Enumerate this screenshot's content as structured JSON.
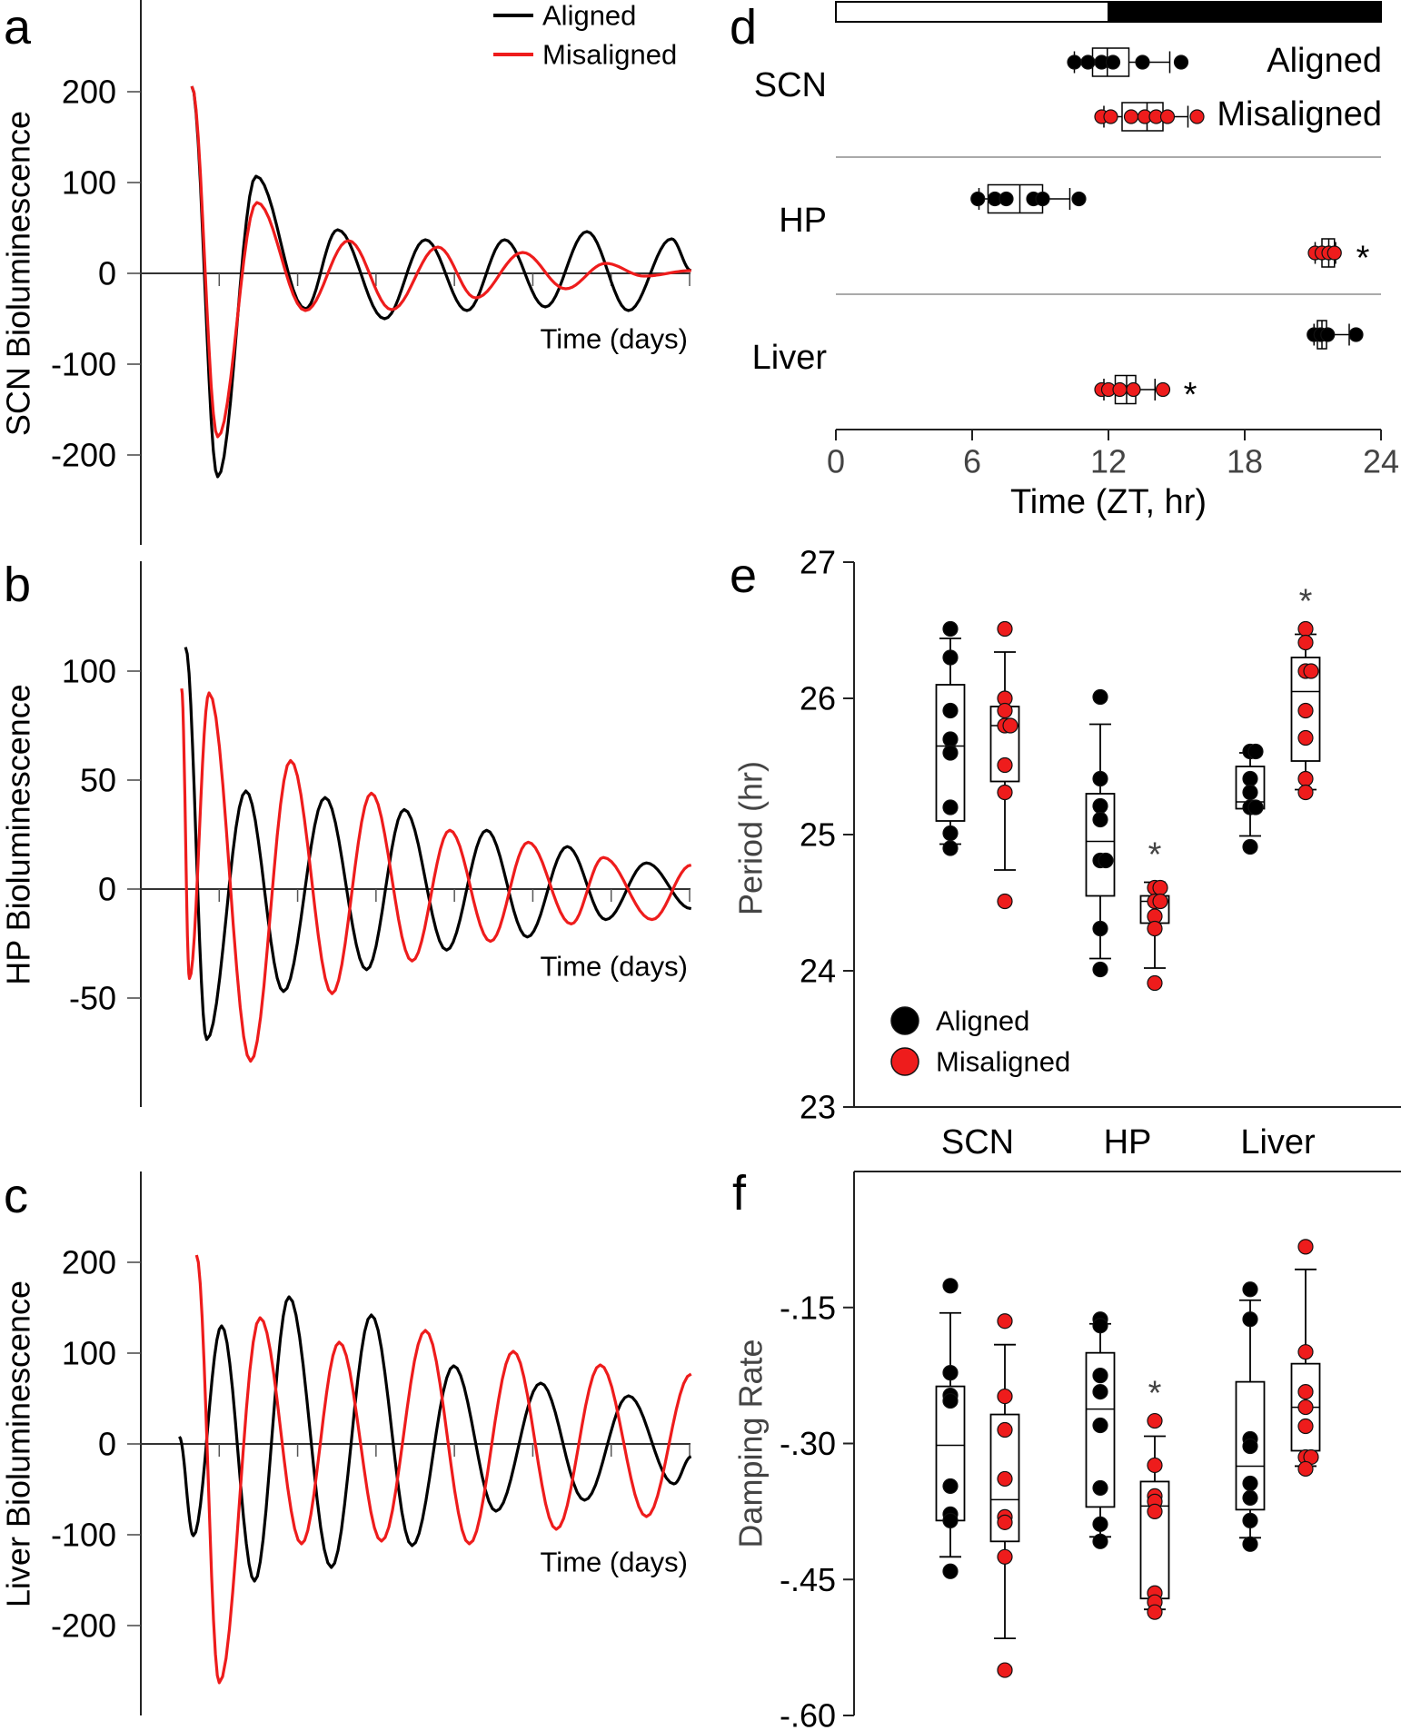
{
  "colors": {
    "aligned": "#000000",
    "misaligned": "#ee1c1c",
    "separator": "#aaaaaa"
  },
  "legend": [
    "Aligned",
    "Misaligned"
  ],
  "chart_data": [
    {
      "panel": "a",
      "type": "line",
      "ylabel": "SCN Bioluminescence",
      "xlabel": "Time (days)",
      "xlim": [
        0,
        7
      ],
      "xticks": [
        1,
        2,
        3,
        4,
        5,
        6,
        7
      ],
      "ylim": [
        -300,
        300
      ],
      "yticks": [
        200,
        100,
        0,
        -100,
        -200
      ],
      "legend_position": "top-right",
      "series": [
        {
          "name": "Aligned",
          "points": [
            [
              0.65,
              206
            ],
            [
              0.98,
              -224
            ],
            [
              1.47,
              107
            ],
            [
              2.1,
              -39
            ],
            [
              2.51,
              48
            ],
            [
              3.11,
              -50
            ],
            [
              3.63,
              37
            ],
            [
              4.16,
              -41
            ],
            [
              4.64,
              37
            ],
            [
              5.16,
              -37
            ],
            [
              5.69,
              46
            ],
            [
              6.22,
              -41
            ],
            [
              6.77,
              38
            ],
            [
              7.02,
              3
            ]
          ]
        },
        {
          "name": "Misaligned",
          "points": [
            [
              0.65,
              206
            ],
            [
              0.98,
              -180
            ],
            [
              1.48,
              78
            ],
            [
              2.1,
              -41
            ],
            [
              2.65,
              36
            ],
            [
              3.2,
              -40
            ],
            [
              3.79,
              29
            ],
            [
              4.27,
              -27
            ],
            [
              4.87,
              23
            ],
            [
              5.42,
              -17
            ],
            [
              5.93,
              11
            ],
            [
              6.42,
              -3
            ],
            [
              7.02,
              3
            ]
          ]
        }
      ]
    },
    {
      "panel": "b",
      "type": "line",
      "ylabel": "HP Bioluminescence",
      "xlabel": "Time (days)",
      "xlim": [
        0,
        7
      ],
      "xticks": [
        1,
        2,
        3,
        4,
        5,
        6,
        7
      ],
      "ylim": [
        -100,
        150
      ],
      "yticks": [
        100,
        50,
        0,
        -50
      ],
      "series": [
        {
          "name": "Aligned",
          "points": [
            [
              0.57,
              111
            ],
            [
              0.84,
              -69
            ],
            [
              1.34,
              45
            ],
            [
              1.82,
              -47
            ],
            [
              2.35,
              42
            ],
            [
              2.88,
              -37
            ],
            [
              3.36,
              36.5
            ],
            [
              3.9,
              -28
            ],
            [
              4.41,
              27
            ],
            [
              4.93,
              -22
            ],
            [
              5.44,
              19.5
            ],
            [
              5.93,
              -14
            ],
            [
              6.45,
              12
            ],
            [
              7.02,
              -9
            ]
          ]
        },
        {
          "name": "Misaligned",
          "points": [
            [
              0.52,
              92
            ],
            [
              0.62,
              -41
            ],
            [
              0.87,
              90
            ],
            [
              1.4,
              -79
            ],
            [
              1.91,
              59
            ],
            [
              2.44,
              -48
            ],
            [
              2.94,
              44
            ],
            [
              3.46,
              -33
            ],
            [
              3.94,
              27
            ],
            [
              4.46,
              -24
            ],
            [
              4.94,
              21.5
            ],
            [
              5.49,
              -16
            ],
            [
              5.9,
              14.5
            ],
            [
              6.52,
              -14
            ],
            [
              7.02,
              11
            ]
          ]
        }
      ]
    },
    {
      "panel": "c",
      "type": "line",
      "ylabel": "Liver Bioluminescence",
      "xlabel": "Time (days)",
      "xlim": [
        0,
        7
      ],
      "xticks": [
        1,
        2,
        3,
        4,
        5,
        6,
        7
      ],
      "ylim": [
        -300,
        300
      ],
      "yticks": [
        200,
        100,
        0,
        -100,
        -200
      ],
      "series": [
        {
          "name": "Aligned",
          "points": [
            [
              0.49,
              8
            ],
            [
              0.67,
              -101
            ],
            [
              1.03,
              130
            ],
            [
              1.45,
              -151
            ],
            [
              1.89,
              162
            ],
            [
              2.43,
              -136
            ],
            [
              2.94,
              142
            ],
            [
              3.46,
              -112
            ],
            [
              3.99,
              86
            ],
            [
              4.53,
              -74
            ],
            [
              5.1,
              67
            ],
            [
              5.66,
              -62
            ],
            [
              6.22,
              53
            ],
            [
              6.8,
              -44
            ],
            [
              7.02,
              -14
            ]
          ]
        },
        {
          "name": "Misaligned",
          "points": [
            [
              0.71,
              208
            ],
            [
              1.0,
              -263
            ],
            [
              1.52,
              139
            ],
            [
              2.05,
              -110
            ],
            [
              2.53,
              112
            ],
            [
              3.07,
              -107
            ],
            [
              3.63,
              125
            ],
            [
              4.19,
              -110
            ],
            [
              4.75,
              102
            ],
            [
              5.3,
              -94
            ],
            [
              5.86,
              87
            ],
            [
              6.45,
              -80
            ],
            [
              7.02,
              77
            ]
          ]
        }
      ]
    },
    {
      "panel": "d",
      "type": "box",
      "orientation": "horizontal",
      "xlabel": "Time (ZT, hr)",
      "xlim": [
        0,
        24
      ],
      "xticks": [
        0,
        6,
        12,
        18,
        24
      ],
      "light_dark_bar": {
        "light": [
          0,
          12
        ],
        "dark": [
          12,
          24
        ]
      },
      "tissues": [
        "SCN",
        "HP",
        "Liver"
      ],
      "row_labels": [
        "Aligned",
        "Misaligned"
      ],
      "groups": [
        {
          "tissue": "SCN",
          "condition": "Aligned",
          "whisker": [
            10.5,
            14.7
          ],
          "box": [
            11.3,
            12.9
          ],
          "median": 11.95,
          "points": [
            10.5,
            11.1,
            11.7,
            12.2,
            13.5,
            15.2
          ],
          "significant": false
        },
        {
          "tissue": "SCN",
          "condition": "Misaligned",
          "whisker": [
            11.8,
            15.5
          ],
          "box": [
            12.6,
            14.4
          ],
          "median": 13.7,
          "points": [
            11.7,
            12.1,
            13.0,
            13.6,
            14.1,
            14.6,
            15.9
          ],
          "significant": false
        },
        {
          "tissue": "HP",
          "condition": "Aligned",
          "whisker": [
            6.3,
            10.3
          ],
          "box": [
            6.7,
            9.1
          ],
          "median": 8.1,
          "points": [
            6.25,
            7.0,
            7.5,
            8.7,
            9.1,
            10.7
          ],
          "significant": false
        },
        {
          "tissue": "HP",
          "condition": "Misaligned",
          "whisker": [
            21.1,
            22.0
          ],
          "box": [
            21.4,
            21.95
          ],
          "median": 21.7,
          "points": [
            21.1,
            21.4,
            21.7,
            21.95
          ],
          "significant": true
        },
        {
          "tissue": "Liver",
          "condition": "Aligned",
          "whisker": [
            21.05,
            22.6
          ],
          "box": [
            21.2,
            21.6
          ],
          "median": 21.4,
          "points": [
            21.05,
            21.35,
            21.65,
            22.9
          ],
          "significant": false
        },
        {
          "tissue": "Liver",
          "condition": "Misaligned",
          "whisker": [
            11.8,
            14.05
          ],
          "box": [
            12.3,
            13.2
          ],
          "median": 12.8,
          "points": [
            11.7,
            12.0,
            12.5,
            13.1,
            14.4
          ],
          "significant": true
        }
      ],
      "asterisk": "*"
    },
    {
      "panel": "e",
      "type": "box",
      "orientation": "vertical",
      "ylabel": "Period (hr)",
      "ylim": [
        23,
        27
      ],
      "yticks": [
        23,
        24,
        25,
        26,
        27
      ],
      "categories": [
        "SCN",
        "HP",
        "Liver"
      ],
      "legend_position": "bottom-left",
      "groups": [
        {
          "tissue": "SCN",
          "condition": "Aligned",
          "whisker": [
            24.93,
            26.44
          ],
          "box": [
            25.1,
            26.1
          ],
          "median": 25.65,
          "points": [
            26.51,
            26.3,
            25.91,
            25.7,
            25.6,
            25.2,
            25.01,
            24.9
          ],
          "significant": false
        },
        {
          "tissue": "SCN",
          "condition": "Misaligned",
          "whisker": [
            24.74,
            26.34
          ],
          "box": [
            25.39,
            25.94
          ],
          "median": 25.8,
          "points": [
            26.51,
            26.0,
            25.91,
            25.8,
            25.8,
            25.51,
            25.31,
            24.51
          ],
          "significant": false
        },
        {
          "tissue": "HP",
          "condition": "Aligned",
          "whisker": [
            24.09,
            25.81
          ],
          "box": [
            24.55,
            25.3
          ],
          "median": 24.95,
          "points": [
            26.01,
            25.41,
            25.21,
            25.11,
            24.81,
            24.81,
            24.31,
            24.01
          ],
          "significant": false
        },
        {
          "tissue": "HP",
          "condition": "Misaligned",
          "whisker": [
            24.02,
            24.65
          ],
          "box": [
            24.35,
            24.55
          ],
          "median": 24.51,
          "points": [
            24.61,
            24.61,
            24.51,
            24.51,
            24.4,
            24.31,
            23.91
          ],
          "significant": true
        },
        {
          "tissue": "Liver",
          "condition": "Aligned",
          "whisker": [
            24.99,
            25.6
          ],
          "box": [
            25.19,
            25.5
          ],
          "median": 25.24,
          "points": [
            25.61,
            25.61,
            25.41,
            25.31,
            25.2,
            25.2,
            24.91
          ],
          "significant": false
        },
        {
          "tissue": "Liver",
          "condition": "Misaligned",
          "whisker": [
            25.33,
            26.47
          ],
          "box": [
            25.54,
            26.3
          ],
          "median": 26.05,
          "points": [
            26.51,
            26.41,
            26.2,
            26.2,
            25.91,
            25.71,
            25.41,
            25.31
          ],
          "significant": true
        }
      ],
      "asterisk": "*"
    },
    {
      "panel": "f",
      "type": "box",
      "orientation": "vertical",
      "ylabel": "Damping Rate",
      "ylim": [
        -0.6,
        0
      ],
      "yticks": [
        -0.15,
        -0.3,
        -0.45,
        -0.6
      ],
      "ytick_labels": [
        "-.15",
        "-.30",
        "-.45",
        "-.60"
      ],
      "groups": [
        {
          "tissue": "SCN",
          "condition": "Aligned",
          "whisker": [
            -0.425,
            -0.156
          ],
          "box": [
            -0.385,
            -0.237
          ],
          "median": -0.302,
          "points": [
            -0.126,
            -0.222,
            -0.247,
            -0.253,
            -0.347,
            -0.378,
            -0.385,
            -0.441
          ],
          "significant": false
        },
        {
          "tissue": "SCN",
          "condition": "Misaligned",
          "whisker": [
            -0.515,
            -0.191
          ],
          "box": [
            -0.408,
            -0.268
          ],
          "median": -0.362,
          "points": [
            -0.165,
            -0.248,
            -0.285,
            -0.339,
            -0.381,
            -0.387,
            -0.425,
            -0.55
          ],
          "significant": false
        },
        {
          "tissue": "HP",
          "condition": "Aligned",
          "whisker": [
            -0.403,
            -0.168
          ],
          "box": [
            -0.37,
            -0.2
          ],
          "median": -0.262,
          "points": [
            -0.163,
            -0.17,
            -0.225,
            -0.243,
            -0.28,
            -0.349,
            -0.389,
            -0.408
          ],
          "significant": false
        },
        {
          "tissue": "HP",
          "condition": "Misaligned",
          "whisker": [
            -0.483,
            -0.292
          ],
          "box": [
            -0.471,
            -0.342
          ],
          "median": -0.369,
          "points": [
            -0.275,
            -0.324,
            -0.358,
            -0.364,
            -0.375,
            -0.465,
            -0.475,
            -0.486
          ],
          "significant": true
        },
        {
          "tissue": "Liver",
          "condition": "Aligned",
          "whisker": [
            -0.404,
            -0.142
          ],
          "box": [
            -0.373,
            -0.232
          ],
          "median": -0.325,
          "points": [
            -0.13,
            -0.163,
            -0.295,
            -0.303,
            -0.344,
            -0.36,
            -0.385,
            -0.411
          ],
          "significant": false
        },
        {
          "tissue": "Liver",
          "condition": "Misaligned",
          "whisker": [
            -0.325,
            -0.108
          ],
          "box": [
            -0.308,
            -0.212
          ],
          "median": -0.26,
          "points": [
            -0.083,
            -0.199,
            -0.243,
            -0.26,
            -0.281,
            -0.315,
            -0.315,
            -0.328
          ],
          "significant": false
        }
      ],
      "asterisk": "*"
    }
  ]
}
